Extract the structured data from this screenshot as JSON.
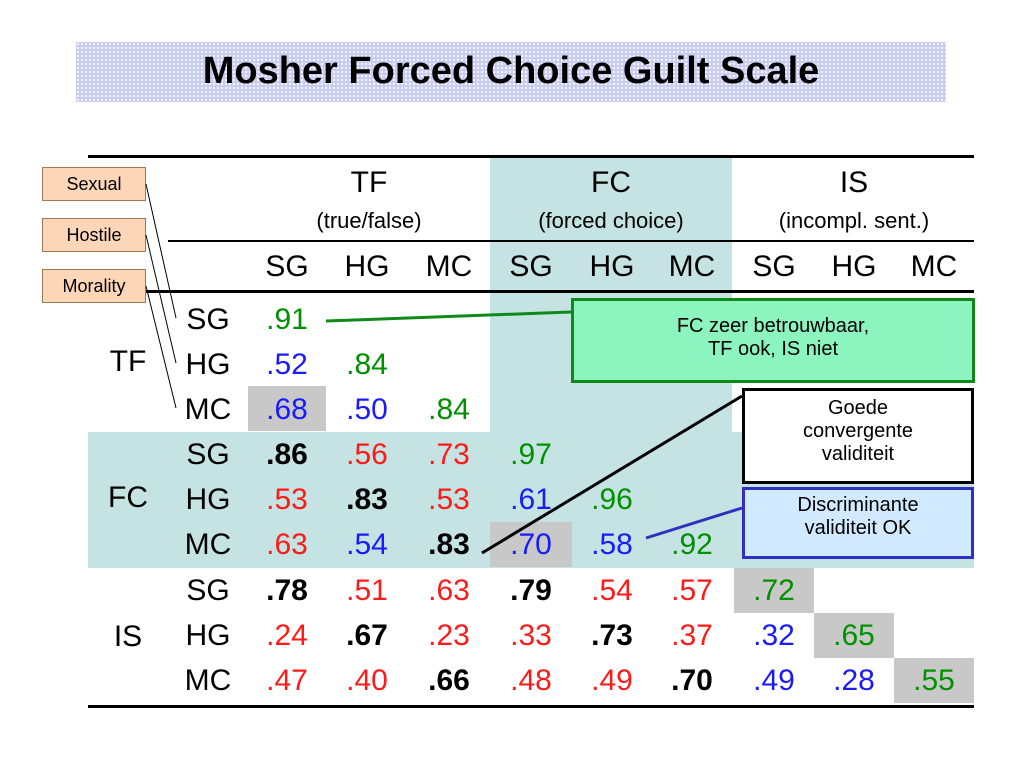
{
  "title": "Mosher Forced Choice Guilt Scale",
  "tags": [
    "Sexual",
    "Hostile",
    "Morality"
  ],
  "column_groups": [
    {
      "abbr": "TF",
      "full": "(true/false)"
    },
    {
      "abbr": "FC",
      "full": "(forced choice)"
    },
    {
      "abbr": "IS",
      "full": "(incompl. sent.)"
    }
  ],
  "subscales": [
    "SG",
    "HG",
    "MC"
  ],
  "row_groups": [
    "TF",
    "FC",
    "IS"
  ],
  "matrix": [
    [
      {
        "v": ".91",
        "c": "green"
      }
    ],
    [
      {
        "v": ".52",
        "c": "blue"
      },
      {
        "v": ".84",
        "c": "green"
      }
    ],
    [
      {
        "v": ".68",
        "c": "blue"
      },
      {
        "v": ".50",
        "c": "blue"
      },
      {
        "v": ".84",
        "c": "green"
      }
    ],
    [
      {
        "v": ".86",
        "c": "black"
      },
      {
        "v": ".56",
        "c": "red"
      },
      {
        "v": ".73",
        "c": "red"
      },
      {
        "v": ".97",
        "c": "green"
      }
    ],
    [
      {
        "v": ".53",
        "c": "red"
      },
      {
        "v": ".83",
        "c": "black"
      },
      {
        "v": ".53",
        "c": "red"
      },
      {
        "v": ".61",
        "c": "blue"
      },
      {
        "v": ".96",
        "c": "green"
      }
    ],
    [
      {
        "v": ".63",
        "c": "red"
      },
      {
        "v": ".54",
        "c": "blue"
      },
      {
        "v": ".83",
        "c": "black"
      },
      {
        "v": ".70",
        "c": "blue"
      },
      {
        "v": ".58",
        "c": "blue"
      },
      {
        "v": ".92",
        "c": "green"
      }
    ],
    [
      {
        "v": ".78",
        "c": "black"
      },
      {
        "v": ".51",
        "c": "red"
      },
      {
        "v": ".63",
        "c": "red"
      },
      {
        "v": ".79",
        "c": "black"
      },
      {
        "v": ".54",
        "c": "red"
      },
      {
        "v": ".57",
        "c": "red"
      },
      {
        "v": ".72",
        "c": "green"
      }
    ],
    [
      {
        "v": ".24",
        "c": "red"
      },
      {
        "v": ".67",
        "c": "black"
      },
      {
        "v": ".23",
        "c": "red"
      },
      {
        "v": ".33",
        "c": "red"
      },
      {
        "v": ".73",
        "c": "black"
      },
      {
        "v": ".37",
        "c": "red"
      },
      {
        "v": ".32",
        "c": "blue"
      },
      {
        "v": ".65",
        "c": "green"
      }
    ],
    [
      {
        "v": ".47",
        "c": "red"
      },
      {
        "v": ".40",
        "c": "red"
      },
      {
        "v": ".66",
        "c": "black"
      },
      {
        "v": ".48",
        "c": "red"
      },
      {
        "v": ".49",
        "c": "red"
      },
      {
        "v": ".70",
        "c": "black"
      },
      {
        "v": ".49",
        "c": "blue"
      },
      {
        "v": ".28",
        "c": "blue"
      },
      {
        "v": ".55",
        "c": "green"
      }
    ]
  ],
  "callouts": {
    "green": [
      "FC zeer betrouwbaar,",
      "TF ook, IS niet"
    ],
    "black": [
      "Goede",
      "convergente",
      "validiteit"
    ],
    "blue": [
      "Discriminante",
      "validiteit OK"
    ]
  },
  "colors": {
    "green": "#009000",
    "blue": "#1a1aff",
    "red": "#ff1a1a",
    "band": "#c5e3e2",
    "diag": "#c8c8c8"
  }
}
